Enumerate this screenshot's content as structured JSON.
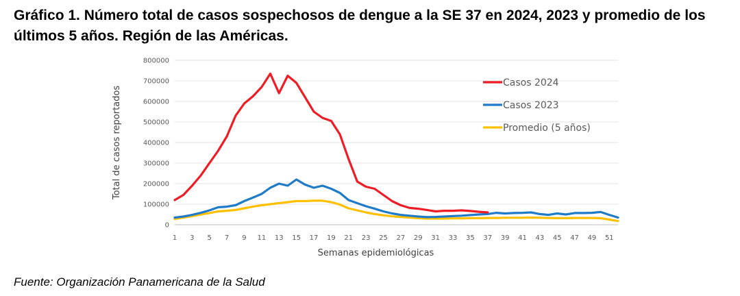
{
  "title": "Gráfico 1. Número total de casos sospechosos de dengue a la SE 37 en 2024, 2023 y promedio de los últimos 5 años. Región de las Américas.",
  "source": "Fuente: Organización Panamericana de la Salud",
  "chart_data": {
    "type": "line",
    "xlabel": "Semanas epidemiológicas",
    "ylabel": "Total de casos reportados",
    "ylim": [
      0,
      800000
    ],
    "yticks": [
      0,
      100000,
      200000,
      300000,
      400000,
      500000,
      600000,
      700000,
      800000
    ],
    "xticks": [
      1,
      3,
      5,
      7,
      9,
      11,
      13,
      15,
      17,
      19,
      21,
      23,
      25,
      27,
      29,
      31,
      33,
      35,
      37,
      39,
      41,
      43,
      45,
      47,
      49,
      51
    ],
    "xlim": [
      1,
      52
    ],
    "grid": true,
    "legend_position": "top-right",
    "series": [
      {
        "name": "Casos 2024",
        "color": "#ee1c25",
        "x": [
          1,
          2,
          3,
          4,
          5,
          6,
          7,
          8,
          9,
          10,
          11,
          12,
          13,
          14,
          15,
          16,
          17,
          18,
          19,
          20,
          21,
          22,
          23,
          24,
          25,
          26,
          27,
          28,
          29,
          30,
          31,
          32,
          33,
          34,
          35,
          36,
          37
        ],
        "values": [
          120000,
          145000,
          190000,
          240000,
          300000,
          360000,
          430000,
          530000,
          590000,
          625000,
          670000,
          735000,
          640000,
          725000,
          690000,
          620000,
          550000,
          520000,
          505000,
          440000,
          320000,
          210000,
          185000,
          175000,
          145000,
          115000,
          95000,
          82000,
          78000,
          72000,
          65000,
          68000,
          68000,
          70000,
          67000,
          63000,
          60000
        ]
      },
      {
        "name": "Casos 2023",
        "color": "#1f7ac8",
        "x": [
          1,
          2,
          3,
          4,
          5,
          6,
          7,
          8,
          9,
          10,
          11,
          12,
          13,
          14,
          15,
          16,
          17,
          18,
          19,
          20,
          21,
          22,
          23,
          24,
          25,
          26,
          27,
          28,
          29,
          30,
          31,
          32,
          33,
          34,
          35,
          36,
          37,
          38,
          39,
          40,
          41,
          42,
          43,
          44,
          45,
          46,
          47,
          48,
          49,
          50,
          51,
          52
        ],
        "values": [
          35000,
          40000,
          48000,
          58000,
          70000,
          85000,
          88000,
          95000,
          115000,
          132000,
          150000,
          180000,
          200000,
          190000,
          220000,
          195000,
          180000,
          190000,
          175000,
          155000,
          120000,
          105000,
          90000,
          78000,
          65000,
          55000,
          48000,
          44000,
          40000,
          37000,
          38000,
          40000,
          42000,
          44000,
          47000,
          50000,
          52000,
          58000,
          55000,
          57000,
          58000,
          60000,
          52000,
          48000,
          55000,
          50000,
          57000,
          57000,
          58000,
          62000,
          48000,
          35000
        ]
      },
      {
        "name": "Promedio (5 años)",
        "color": "#ffc000",
        "x": [
          1,
          2,
          3,
          4,
          5,
          6,
          7,
          8,
          9,
          10,
          11,
          12,
          13,
          14,
          15,
          16,
          17,
          18,
          19,
          20,
          21,
          22,
          23,
          24,
          25,
          26,
          27,
          28,
          29,
          30,
          31,
          32,
          33,
          34,
          35,
          36,
          37,
          38,
          39,
          40,
          41,
          42,
          43,
          44,
          45,
          46,
          47,
          48,
          49,
          50,
          51,
          52
        ],
        "values": [
          28000,
          35000,
          42000,
          50000,
          57000,
          65000,
          68000,
          72000,
          80000,
          88000,
          95000,
          100000,
          105000,
          110000,
          115000,
          115000,
          117000,
          117000,
          110000,
          98000,
          80000,
          70000,
          60000,
          52000,
          46000,
          41000,
          38000,
          35000,
          32000,
          30000,
          30000,
          30000,
          31000,
          31000,
          32000,
          32000,
          33000,
          33000,
          34000,
          34000,
          34000,
          35000,
          34000,
          33000,
          32000,
          32000,
          33000,
          33000,
          33000,
          32000,
          25000,
          18000
        ]
      }
    ]
  }
}
